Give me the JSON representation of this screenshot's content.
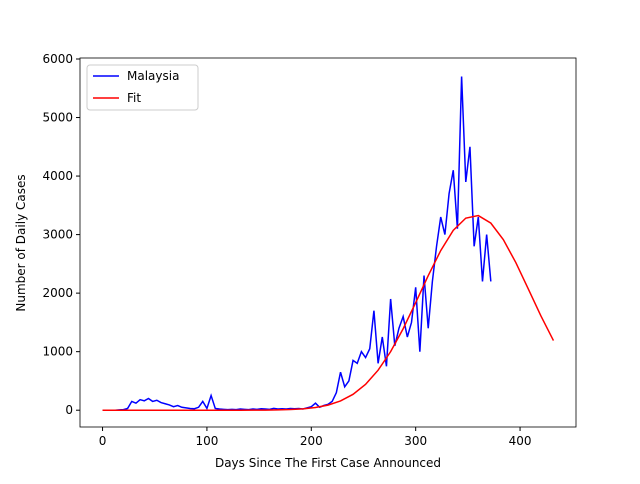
{
  "chart_data": {
    "type": "line",
    "xlabel": "Days Since The First Case Announced",
    "ylabel": "Number of Daily Cases",
    "legend": "upper left",
    "xlim": [
      -21.6,
      453.6
    ],
    "ylim": [
      -287,
      6017
    ],
    "xticks": [
      0,
      100,
      200,
      300,
      400
    ],
    "yticks": [
      0,
      1000,
      2000,
      3000,
      4000,
      5000,
      6000
    ],
    "series": [
      {
        "name": "Malaysia",
        "color": "#0000ff",
        "x": [
          0,
          4,
          8,
          12,
          16,
          20,
          24,
          28,
          32,
          36,
          40,
          44,
          48,
          52,
          56,
          60,
          64,
          68,
          72,
          76,
          80,
          84,
          88,
          92,
          96,
          100,
          104,
          108,
          112,
          116,
          120,
          124,
          128,
          132,
          136,
          140,
          144,
          148,
          152,
          156,
          160,
          164,
          168,
          172,
          176,
          180,
          184,
          188,
          192,
          196,
          200,
          204,
          208,
          212,
          216,
          220,
          224,
          228,
          232,
          236,
          240,
          244,
          248,
          252,
          256,
          260,
          264,
          268,
          272,
          276,
          280,
          284,
          288,
          292,
          296,
          300,
          304,
          308,
          312,
          316,
          320,
          324,
          328,
          332,
          336,
          340,
          344,
          348,
          352,
          356,
          360,
          364,
          368,
          372
        ],
        "values": [
          0,
          0,
          0,
          0,
          5,
          10,
          30,
          150,
          120,
          180,
          160,
          200,
          150,
          170,
          130,
          110,
          90,
          60,
          80,
          50,
          40,
          30,
          25,
          50,
          150,
          30,
          250,
          30,
          20,
          15,
          10,
          15,
          10,
          20,
          15,
          10,
          20,
          15,
          25,
          20,
          15,
          30,
          20,
          25,
          20,
          30,
          25,
          30,
          20,
          40,
          60,
          120,
          50,
          80,
          100,
          150,
          300,
          650,
          400,
          500,
          850,
          800,
          1000,
          900,
          1050,
          1700,
          800,
          1250,
          750,
          1900,
          1100,
          1400,
          1600,
          1250,
          1500,
          2100,
          1000,
          2300,
          1400,
          2200,
          2800,
          3300,
          3000,
          3700,
          4100,
          3100,
          5700,
          3900,
          4500,
          2800,
          3300,
          2200,
          3000,
          2200
        ]
      },
      {
        "name": "Fit",
        "color": "#ff0000",
        "x": [
          0,
          12,
          24,
          36,
          48,
          60,
          72,
          84,
          96,
          108,
          120,
          132,
          144,
          156,
          168,
          180,
          192,
          204,
          216,
          228,
          240,
          252,
          264,
          276,
          288,
          300,
          312,
          324,
          336,
          348,
          360,
          372,
          384,
          396,
          408,
          420,
          432
        ],
        "values": [
          0,
          0,
          0,
          0,
          0,
          0,
          0,
          0,
          0,
          0,
          0,
          0,
          1,
          2,
          5,
          11,
          23,
          46,
          87,
          158,
          271,
          442,
          683,
          1001,
          1392,
          1837,
          2298,
          2727,
          3072,
          3281,
          3325,
          3196,
          2914,
          2520,
          2068,
          1610,
          1190
        ]
      }
    ]
  }
}
